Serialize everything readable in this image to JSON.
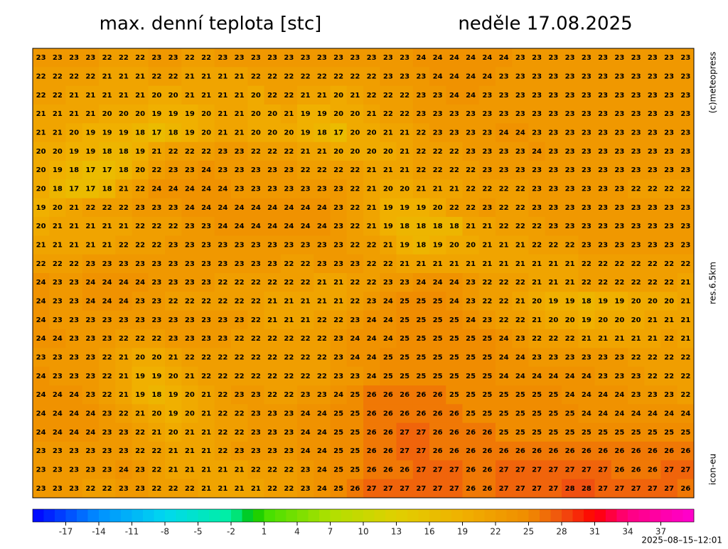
{
  "title": "max. denní teplota [stc]",
  "date": "neděle 17.08.2025",
  "side_labels": [
    "(c)meteopress",
    "res.6.5km",
    "icon-eu"
  ],
  "timestamp": "2025–08–15–12:01",
  "map": {
    "rows": [
      [
        23,
        23,
        23,
        23,
        22,
        22,
        22,
        23,
        23,
        22,
        22,
        23,
        23,
        23,
        23,
        23,
        23,
        23,
        23,
        23,
        23,
        23,
        23,
        24,
        24,
        24,
        24,
        24,
        24,
        23,
        23,
        23,
        23,
        23,
        23,
        23,
        23,
        23,
        23,
        23
      ],
      [
        22,
        22,
        22,
        22,
        21,
        21,
        21,
        22,
        22,
        21,
        21,
        21,
        21,
        22,
        22,
        22,
        22,
        22,
        22,
        22,
        22,
        23,
        23,
        23,
        24,
        24,
        24,
        24,
        23,
        23,
        23,
        23,
        23,
        23,
        23,
        23,
        23,
        23,
        23,
        23
      ],
      [
        22,
        22,
        21,
        21,
        21,
        21,
        21,
        20,
        20,
        21,
        21,
        21,
        21,
        20,
        22,
        22,
        21,
        21,
        20,
        21,
        22,
        22,
        22,
        23,
        23,
        24,
        24,
        23,
        23,
        23,
        23,
        23,
        23,
        23,
        23,
        23,
        23,
        23,
        23,
        23
      ],
      [
        21,
        21,
        21,
        21,
        20,
        20,
        20,
        19,
        19,
        19,
        20,
        21,
        21,
        20,
        20,
        21,
        19,
        19,
        20,
        20,
        21,
        22,
        22,
        23,
        23,
        23,
        23,
        23,
        23,
        23,
        23,
        23,
        23,
        23,
        23,
        23,
        23,
        23,
        23,
        23
      ],
      [
        21,
        21,
        20,
        19,
        19,
        19,
        18,
        17,
        18,
        19,
        20,
        21,
        21,
        20,
        20,
        20,
        19,
        18,
        17,
        20,
        20,
        21,
        21,
        22,
        23,
        23,
        23,
        23,
        24,
        24,
        23,
        23,
        23,
        23,
        23,
        23,
        23,
        23,
        23,
        23
      ],
      [
        20,
        20,
        19,
        19,
        18,
        18,
        19,
        21,
        22,
        22,
        22,
        23,
        23,
        22,
        22,
        22,
        21,
        21,
        20,
        20,
        20,
        20,
        21,
        22,
        22,
        22,
        23,
        23,
        23,
        23,
        24,
        23,
        23,
        23,
        23,
        23,
        23,
        23,
        23,
        23
      ],
      [
        20,
        19,
        18,
        17,
        17,
        18,
        20,
        22,
        23,
        23,
        24,
        23,
        23,
        23,
        23,
        23,
        22,
        22,
        22,
        22,
        21,
        21,
        21,
        22,
        22,
        22,
        22,
        23,
        23,
        23,
        23,
        23,
        23,
        23,
        23,
        23,
        23,
        23,
        23,
        23
      ],
      [
        20,
        18,
        17,
        17,
        18,
        21,
        22,
        24,
        24,
        24,
        24,
        24,
        23,
        23,
        23,
        23,
        23,
        23,
        23,
        22,
        21,
        20,
        20,
        21,
        21,
        21,
        22,
        22,
        22,
        22,
        23,
        23,
        23,
        23,
        23,
        23,
        22,
        22,
        22,
        22
      ],
      [
        19,
        20,
        21,
        22,
        22,
        22,
        23,
        23,
        23,
        24,
        24,
        24,
        24,
        24,
        24,
        24,
        24,
        24,
        23,
        22,
        21,
        19,
        19,
        19,
        20,
        22,
        22,
        23,
        22,
        22,
        23,
        23,
        23,
        23,
        23,
        23,
        23,
        23,
        23,
        23
      ],
      [
        20,
        21,
        21,
        21,
        21,
        21,
        22,
        22,
        22,
        23,
        23,
        24,
        24,
        24,
        24,
        24,
        24,
        24,
        23,
        22,
        21,
        19,
        18,
        18,
        18,
        18,
        21,
        21,
        22,
        22,
        22,
        23,
        23,
        23,
        23,
        23,
        23,
        23,
        23,
        23
      ],
      [
        21,
        21,
        21,
        21,
        21,
        22,
        22,
        22,
        23,
        23,
        23,
        23,
        23,
        23,
        23,
        23,
        23,
        23,
        23,
        22,
        22,
        21,
        19,
        18,
        19,
        20,
        20,
        21,
        21,
        21,
        22,
        22,
        22,
        23,
        23,
        23,
        23,
        23,
        23,
        23
      ],
      [
        22,
        22,
        22,
        23,
        23,
        23,
        23,
        23,
        23,
        23,
        23,
        23,
        23,
        23,
        23,
        22,
        22,
        23,
        23,
        23,
        22,
        22,
        21,
        21,
        21,
        21,
        21,
        21,
        21,
        21,
        21,
        21,
        21,
        22,
        22,
        22,
        22,
        22,
        22,
        22
      ],
      [
        24,
        23,
        23,
        24,
        24,
        24,
        24,
        23,
        23,
        23,
        23,
        22,
        22,
        22,
        22,
        22,
        22,
        21,
        21,
        22,
        22,
        23,
        23,
        24,
        24,
        24,
        23,
        22,
        22,
        22,
        21,
        21,
        21,
        22,
        22,
        22,
        22,
        22,
        22,
        21
      ],
      [
        24,
        23,
        23,
        24,
        24,
        24,
        23,
        23,
        22,
        22,
        22,
        22,
        22,
        22,
        21,
        21,
        21,
        21,
        21,
        22,
        23,
        24,
        25,
        25,
        25,
        24,
        23,
        22,
        22,
        21,
        20,
        19,
        19,
        18,
        19,
        19,
        20,
        20,
        20,
        21
      ],
      [
        24,
        23,
        23,
        23,
        23,
        23,
        23,
        23,
        23,
        23,
        23,
        23,
        23,
        22,
        21,
        21,
        21,
        22,
        22,
        23,
        24,
        24,
        25,
        25,
        25,
        25,
        24,
        23,
        22,
        22,
        21,
        20,
        20,
        19,
        20,
        20,
        20,
        21,
        21,
        21
      ],
      [
        24,
        24,
        23,
        23,
        23,
        22,
        22,
        22,
        23,
        23,
        23,
        23,
        22,
        22,
        22,
        22,
        22,
        22,
        23,
        24,
        24,
        24,
        25,
        25,
        25,
        25,
        25,
        25,
        24,
        23,
        22,
        22,
        22,
        21,
        21,
        21,
        21,
        21,
        22,
        21
      ],
      [
        23,
        23,
        23,
        23,
        22,
        21,
        20,
        20,
        21,
        22,
        22,
        22,
        22,
        22,
        22,
        22,
        22,
        22,
        23,
        24,
        24,
        25,
        25,
        25,
        25,
        25,
        25,
        25,
        24,
        24,
        23,
        23,
        23,
        23,
        23,
        23,
        22,
        22,
        22,
        22
      ],
      [
        24,
        23,
        23,
        23,
        22,
        21,
        19,
        19,
        20,
        21,
        22,
        22,
        22,
        22,
        22,
        22,
        22,
        22,
        23,
        23,
        24,
        25,
        25,
        25,
        25,
        25,
        25,
        25,
        24,
        24,
        24,
        24,
        24,
        24,
        23,
        23,
        23,
        22,
        22,
        22
      ],
      [
        24,
        24,
        24,
        23,
        22,
        21,
        19,
        18,
        19,
        20,
        21,
        22,
        23,
        23,
        22,
        22,
        23,
        23,
        24,
        25,
        26,
        26,
        26,
        26,
        26,
        25,
        25,
        25,
        25,
        25,
        25,
        25,
        24,
        24,
        24,
        24,
        23,
        23,
        23,
        22
      ],
      [
        24,
        24,
        24,
        24,
        23,
        22,
        21,
        20,
        19,
        20,
        21,
        22,
        22,
        23,
        23,
        23,
        24,
        24,
        25,
        25,
        26,
        26,
        26,
        26,
        26,
        26,
        25,
        25,
        25,
        25,
        25,
        25,
        25,
        24,
        24,
        24,
        24,
        24,
        24,
        24
      ],
      [
        24,
        24,
        24,
        24,
        23,
        23,
        22,
        21,
        20,
        21,
        21,
        22,
        22,
        23,
        23,
        23,
        24,
        24,
        25,
        25,
        26,
        26,
        27,
        27,
        26,
        26,
        26,
        26,
        25,
        25,
        25,
        25,
        25,
        25,
        25,
        25,
        25,
        25,
        25,
        25
      ],
      [
        23,
        23,
        23,
        23,
        23,
        23,
        22,
        22,
        21,
        21,
        21,
        22,
        23,
        23,
        23,
        23,
        24,
        24,
        25,
        25,
        26,
        26,
        27,
        27,
        26,
        26,
        26,
        26,
        26,
        26,
        26,
        26,
        26,
        26,
        26,
        26,
        26,
        26,
        26,
        26
      ],
      [
        23,
        23,
        23,
        23,
        23,
        24,
        23,
        22,
        21,
        21,
        21,
        21,
        21,
        22,
        22,
        22,
        23,
        24,
        25,
        25,
        26,
        26,
        26,
        27,
        27,
        27,
        26,
        26,
        27,
        27,
        27,
        27,
        27,
        27,
        27,
        26,
        26,
        26,
        27,
        27
      ],
      [
        23,
        23,
        23,
        22,
        22,
        23,
        23,
        22,
        22,
        22,
        21,
        21,
        21,
        21,
        22,
        22,
        23,
        24,
        25,
        26,
        27,
        27,
        27,
        27,
        27,
        27,
        26,
        26,
        27,
        27,
        27,
        27,
        28,
        28,
        27,
        27,
        27,
        27,
        27,
        26
      ]
    ]
  },
  "colorbar": {
    "range": [
      -20,
      40
    ],
    "ticks": [
      -17,
      -14,
      -11,
      -8,
      -5,
      -2,
      1,
      4,
      7,
      10,
      13,
      16,
      19,
      22,
      25,
      28,
      31,
      34,
      37
    ],
    "stops": [
      [
        -20,
        "#0000ff"
      ],
      [
        -14,
        "#0090ff"
      ],
      [
        -8,
        "#00d8f0"
      ],
      [
        -2,
        "#00f0a0"
      ],
      [
        0,
        "#00c000"
      ],
      [
        1,
        "#40e000"
      ],
      [
        7,
        "#b0e000"
      ],
      [
        13,
        "#e0d000"
      ],
      [
        19,
        "#f0b000"
      ],
      [
        25,
        "#f08c00"
      ],
      [
        28,
        "#f05010"
      ],
      [
        31,
        "#ff0000"
      ],
      [
        34,
        "#ff0080"
      ],
      [
        40,
        "#ff00d0"
      ]
    ]
  }
}
